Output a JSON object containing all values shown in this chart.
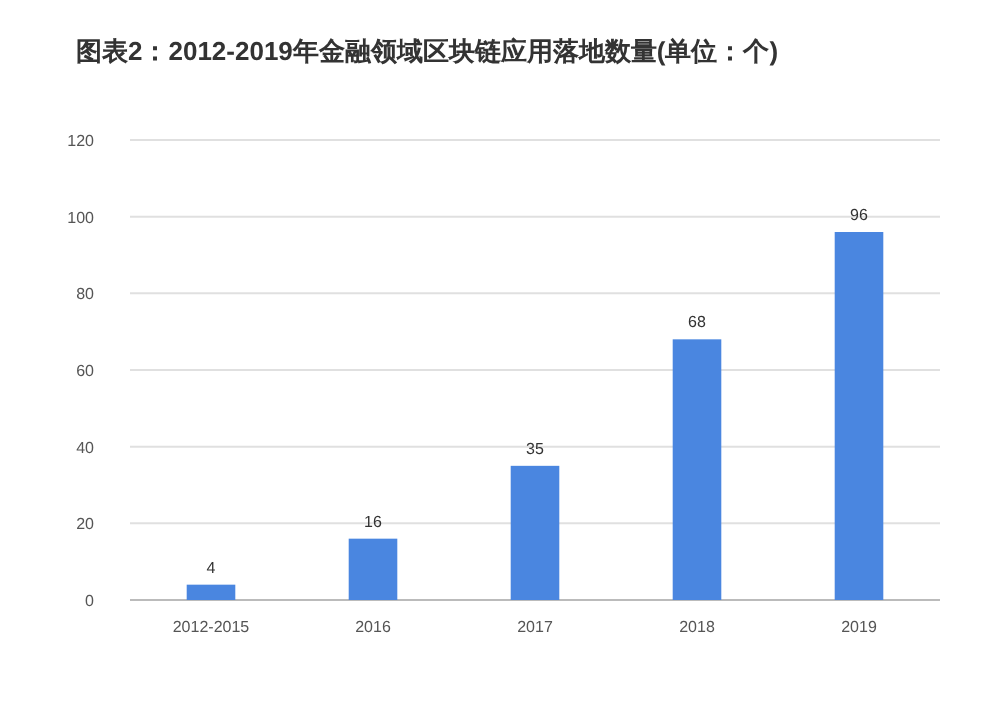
{
  "chart_data": {
    "type": "bar",
    "title": "图表2：2012-2019年金融领域区块链应用落地数量(单位：个)",
    "categories": [
      "2012-2015",
      "2016",
      "2017",
      "2018",
      "2019"
    ],
    "values": [
      4,
      16,
      35,
      68,
      96
    ],
    "color": "#4a86e0",
    "ylim": [
      0,
      120
    ],
    "yticks": [
      0,
      20,
      40,
      60,
      80,
      100,
      120
    ],
    "grid": "y",
    "data_labels": true
  }
}
